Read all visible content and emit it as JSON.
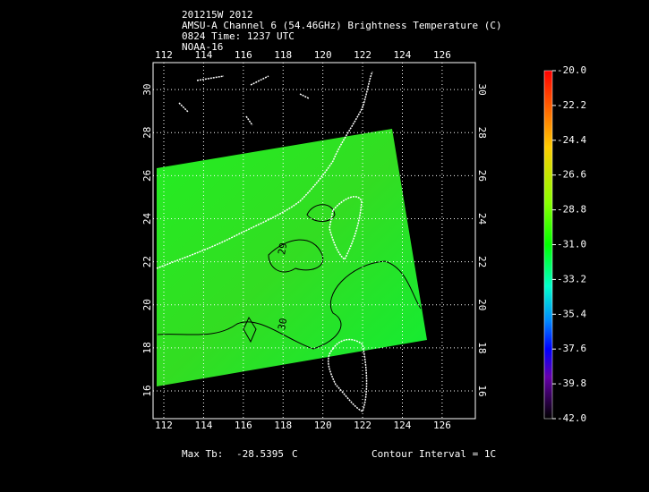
{
  "header": {
    "lines": [
      "201215W 2012",
      "AMSU-A Channel 6 (54.46GHz) Brightness Temperature (C)",
      "0824 Time: 1237 UTC",
      "NOAA-16"
    ]
  },
  "map": {
    "xlim": [
      111.46,
      127.67
    ],
    "ylim": [
      14.71,
      31.25
    ],
    "xticks": [
      112,
      114,
      116,
      118,
      120,
      122,
      124,
      126
    ],
    "yticks": [
      16,
      18,
      20,
      22,
      24,
      26,
      28,
      30
    ],
    "grid": true,
    "contour_labels": [
      {
        "text": "29",
        "lon": 118.0,
        "lat": 22.6
      },
      {
        "text": "30",
        "lon": 118.0,
        "lat": 19.1
      }
    ]
  },
  "colorbar": {
    "lim": [
      -42,
      -20
    ],
    "ticks": [
      {
        "value": -20,
        "label": "-20.0"
      },
      {
        "value": -22.2,
        "label": "-22.2"
      },
      {
        "value": -24.4,
        "label": "-24.4"
      },
      {
        "value": -26.6,
        "label": "-26.6"
      },
      {
        "value": -28.8,
        "label": "-28.8"
      },
      {
        "value": -31,
        "label": "-31.0"
      },
      {
        "value": -33.2,
        "label": "-33.2"
      },
      {
        "value": -35.4,
        "label": "-35.4"
      },
      {
        "value": -37.6,
        "label": "-37.6"
      },
      {
        "value": -39.8,
        "label": "-39.8"
      },
      {
        "value": -42,
        "label": "-42.0"
      }
    ]
  },
  "footer": {
    "max_label": "Max Tb:",
    "max_value": -28.5395,
    "max_unit": "C",
    "contour_interval": "Contour Interval = 1C"
  }
}
